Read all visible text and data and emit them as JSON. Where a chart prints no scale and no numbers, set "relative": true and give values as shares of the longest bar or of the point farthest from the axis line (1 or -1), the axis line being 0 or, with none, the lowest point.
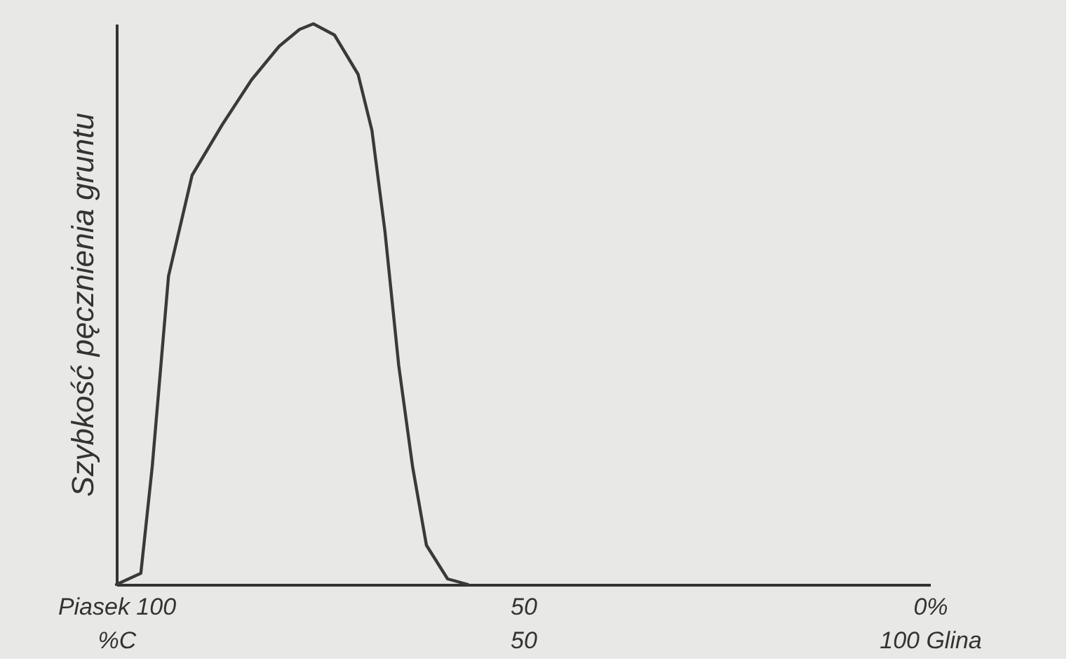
{
  "chart_data": {
    "type": "line",
    "relative": true,
    "ylabel": "Szybkość pęcznienia gruntu",
    "xlim": [
      100,
      0
    ],
    "xticks": [
      {
        "value": 100,
        "label": "Piasek 100"
      },
      50,
      {
        "value": 0,
        "label": "0%"
      }
    ],
    "x2lim": [
      0,
      100
    ],
    "x2ticks": [
      {
        "value": 0,
        "label": "%C"
      },
      50,
      {
        "value": 100,
        "label": "100 Glina"
      }
    ],
    "series": [
      {
        "color": "#3a3a3a",
        "x": [
          100,
          97,
          95.6,
          93.6,
          90.7,
          87,
          83.4,
          80,
          77.5,
          75.8,
          73.2,
          70.3,
          68.6,
          67,
          65.3,
          63.6,
          61.9,
          59.3,
          56.8
        ],
        "values": [
          0,
          0.02,
          0.21,
          0.55,
          0.73,
          0.82,
          0.9,
          0.96,
          0.99,
          1,
          0.98,
          0.91,
          0.81,
          0.63,
          0.39,
          0.21,
          0.07,
          0.01,
          0
        ]
      }
    ],
    "grid": false,
    "line_style": "solid",
    "marker": "none"
  }
}
